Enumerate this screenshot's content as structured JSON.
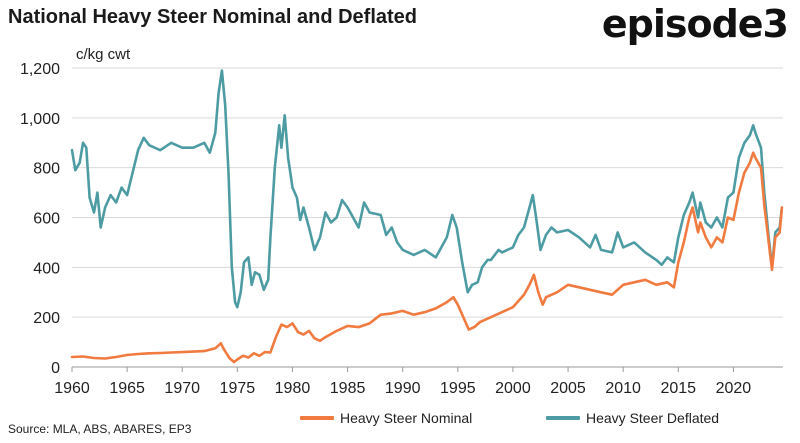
{
  "title": "National Heavy Steer Nominal and Deflated",
  "logo_text": "episode3",
  "source": "Source: MLA, ABS, ABARES, EP3",
  "chart_data": {
    "type": "line",
    "ylabel": "c/kg cwt",
    "xlim": [
      1960,
      2024.5
    ],
    "ylim": [
      0,
      1200
    ],
    "yticks": [
      0,
      200,
      400,
      600,
      800,
      1000,
      1200
    ],
    "ytick_labels": [
      "0",
      "200",
      "400",
      "600",
      "800",
      "1,000",
      "1,200"
    ],
    "xticks": [
      1960,
      1965,
      1970,
      1975,
      1980,
      1985,
      1990,
      1995,
      2000,
      2005,
      2010,
      2015,
      2020
    ],
    "xtick_labels": [
      "1960",
      "1965",
      "1970",
      "1975",
      "1980",
      "1985",
      "1990",
      "1995",
      "2000",
      "2005",
      "2010",
      "2015",
      "2020"
    ],
    "grid": true,
    "legend_position": "bottom-right",
    "series": [
      {
        "name": "Heavy Steer Nominal",
        "color": "#F07A3F",
        "points": [
          [
            1960,
            40
          ],
          [
            1961,
            42
          ],
          [
            1962,
            36
          ],
          [
            1963,
            34
          ],
          [
            1964,
            40
          ],
          [
            1965,
            48
          ],
          [
            1966,
            52
          ],
          [
            1967,
            55
          ],
          [
            1968,
            56
          ],
          [
            1969,
            58
          ],
          [
            1970,
            60
          ],
          [
            1971,
            62
          ],
          [
            1972,
            64
          ],
          [
            1973,
            75
          ],
          [
            1973.5,
            95
          ],
          [
            1973.8,
            70
          ],
          [
            1974.3,
            35
          ],
          [
            1974.7,
            20
          ],
          [
            1975,
            30
          ],
          [
            1975.5,
            45
          ],
          [
            1976,
            38
          ],
          [
            1976.5,
            55
          ],
          [
            1977,
            45
          ],
          [
            1977.5,
            60
          ],
          [
            1978,
            58
          ],
          [
            1978.5,
            120
          ],
          [
            1979,
            170
          ],
          [
            1979.5,
            160
          ],
          [
            1980,
            175
          ],
          [
            1980.5,
            140
          ],
          [
            1981,
            130
          ],
          [
            1981.5,
            145
          ],
          [
            1982,
            115
          ],
          [
            1982.5,
            105
          ],
          [
            1983,
            120
          ],
          [
            1984,
            145
          ],
          [
            1985,
            165
          ],
          [
            1986,
            160
          ],
          [
            1987,
            175
          ],
          [
            1988,
            210
          ],
          [
            1989,
            215
          ],
          [
            1990,
            225
          ],
          [
            1991,
            210
          ],
          [
            1992,
            220
          ],
          [
            1993,
            235
          ],
          [
            1994,
            260
          ],
          [
            1994.6,
            280
          ],
          [
            1995,
            250
          ],
          [
            1995.5,
            200
          ],
          [
            1996,
            150
          ],
          [
            1996.5,
            160
          ],
          [
            1997,
            180
          ],
          [
            1998,
            200
          ],
          [
            1999,
            220
          ],
          [
            2000,
            240
          ],
          [
            2001,
            290
          ],
          [
            2001.5,
            330
          ],
          [
            2001.9,
            370
          ],
          [
            2002.3,
            300
          ],
          [
            2002.7,
            250
          ],
          [
            2003,
            280
          ],
          [
            2004,
            300
          ],
          [
            2005,
            330
          ],
          [
            2006,
            320
          ],
          [
            2007,
            310
          ],
          [
            2008,
            300
          ],
          [
            2009,
            290
          ],
          [
            2010,
            330
          ],
          [
            2011,
            340
          ],
          [
            2012,
            350
          ],
          [
            2013,
            330
          ],
          [
            2014,
            340
          ],
          [
            2014.6,
            320
          ],
          [
            2015,
            420
          ],
          [
            2015.5,
            500
          ],
          [
            2016,
            600
          ],
          [
            2016.3,
            640
          ],
          [
            2016.8,
            540
          ],
          [
            2017,
            580
          ],
          [
            2017.5,
            520
          ],
          [
            2018,
            480
          ],
          [
            2018.5,
            520
          ],
          [
            2019,
            500
          ],
          [
            2019.5,
            600
          ],
          [
            2020,
            590
          ],
          [
            2020.5,
            700
          ],
          [
            2021,
            780
          ],
          [
            2021.5,
            820
          ],
          [
            2021.8,
            860
          ],
          [
            2022,
            840
          ],
          [
            2022.5,
            800
          ],
          [
            2022.8,
            650
          ],
          [
            2023.2,
            500
          ],
          [
            2023.5,
            390
          ],
          [
            2023.8,
            520
          ],
          [
            2024.2,
            540
          ],
          [
            2024.4,
            640
          ]
        ]
      },
      {
        "name": "Heavy Steer Deflated",
        "color": "#4E9CA3",
        "points": [
          [
            1960,
            870
          ],
          [
            1960.3,
            790
          ],
          [
            1960.7,
            820
          ],
          [
            1961,
            900
          ],
          [
            1961.3,
            880
          ],
          [
            1961.6,
            680
          ],
          [
            1962,
            620
          ],
          [
            1962.3,
            700
          ],
          [
            1962.6,
            560
          ],
          [
            1963,
            640
          ],
          [
            1963.5,
            690
          ],
          [
            1964,
            660
          ],
          [
            1964.5,
            720
          ],
          [
            1965,
            690
          ],
          [
            1965.5,
            780
          ],
          [
            1966,
            870
          ],
          [
            1966.5,
            920
          ],
          [
            1967,
            890
          ],
          [
            1968,
            870
          ],
          [
            1969,
            900
          ],
          [
            1970,
            880
          ],
          [
            1971,
            880
          ],
          [
            1972,
            900
          ],
          [
            1972.5,
            860
          ],
          [
            1973,
            940
          ],
          [
            1973.3,
            1100
          ],
          [
            1973.6,
            1190
          ],
          [
            1973.9,
            1050
          ],
          [
            1974.2,
            780
          ],
          [
            1974.5,
            400
          ],
          [
            1974.8,
            260
          ],
          [
            1975,
            240
          ],
          [
            1975.3,
            300
          ],
          [
            1975.6,
            420
          ],
          [
            1976,
            440
          ],
          [
            1976.3,
            330
          ],
          [
            1976.6,
            380
          ],
          [
            1977,
            370
          ],
          [
            1977.4,
            310
          ],
          [
            1977.8,
            350
          ],
          [
            1978,
            520
          ],
          [
            1978.4,
            800
          ],
          [
            1978.8,
            970
          ],
          [
            1979,
            880
          ],
          [
            1979.3,
            1010
          ],
          [
            1979.6,
            840
          ],
          [
            1980,
            720
          ],
          [
            1980.4,
            680
          ],
          [
            1980.7,
            590
          ],
          [
            1981,
            640
          ],
          [
            1981.5,
            560
          ],
          [
            1982,
            470
          ],
          [
            1982.5,
            520
          ],
          [
            1983,
            620
          ],
          [
            1983.5,
            580
          ],
          [
            1984,
            600
          ],
          [
            1984.5,
            670
          ],
          [
            1985,
            640
          ],
          [
            1985.5,
            600
          ],
          [
            1986,
            560
          ],
          [
            1986.5,
            660
          ],
          [
            1987,
            620
          ],
          [
            1988,
            610
          ],
          [
            1988.5,
            530
          ],
          [
            1989,
            560
          ],
          [
            1989.5,
            500
          ],
          [
            1990,
            470
          ],
          [
            1991,
            450
          ],
          [
            1992,
            470
          ],
          [
            1993,
            440
          ],
          [
            1994,
            520
          ],
          [
            1994.5,
            610
          ],
          [
            1994.9,
            560
          ],
          [
            1995.4,
            420
          ],
          [
            1995.9,
            300
          ],
          [
            1996.3,
            330
          ],
          [
            1996.8,
            340
          ],
          [
            1997.2,
            400
          ],
          [
            1997.7,
            430
          ],
          [
            1998,
            430
          ],
          [
            1998.7,
            470
          ],
          [
            1999,
            460
          ],
          [
            2000,
            480
          ],
          [
            2000.5,
            530
          ],
          [
            2001,
            560
          ],
          [
            2001.5,
            640
          ],
          [
            2001.8,
            690
          ],
          [
            2002.1,
            600
          ],
          [
            2002.5,
            470
          ],
          [
            2003,
            530
          ],
          [
            2003.5,
            560
          ],
          [
            2004,
            540
          ],
          [
            2005,
            550
          ],
          [
            2006,
            520
          ],
          [
            2007,
            480
          ],
          [
            2007.5,
            530
          ],
          [
            2008,
            470
          ],
          [
            2009,
            460
          ],
          [
            2009.5,
            540
          ],
          [
            2010,
            480
          ],
          [
            2011,
            500
          ],
          [
            2012,
            460
          ],
          [
            2013,
            430
          ],
          [
            2013.5,
            410
          ],
          [
            2014,
            440
          ],
          [
            2014.6,
            420
          ],
          [
            2015,
            520
          ],
          [
            2015.5,
            610
          ],
          [
            2016,
            660
          ],
          [
            2016.3,
            700
          ],
          [
            2016.8,
            600
          ],
          [
            2017,
            660
          ],
          [
            2017.5,
            580
          ],
          [
            2018,
            560
          ],
          [
            2018.5,
            600
          ],
          [
            2019,
            560
          ],
          [
            2019.5,
            680
          ],
          [
            2020,
            700
          ],
          [
            2020.5,
            840
          ],
          [
            2021,
            900
          ],
          [
            2021.5,
            930
          ],
          [
            2021.8,
            970
          ],
          [
            2022,
            940
          ],
          [
            2022.5,
            880
          ],
          [
            2022.8,
            700
          ],
          [
            2023.2,
            520
          ],
          [
            2023.5,
            400
          ],
          [
            2023.8,
            540
          ],
          [
            2024.2,
            560
          ],
          [
            2024.4,
            640
          ]
        ]
      }
    ]
  }
}
